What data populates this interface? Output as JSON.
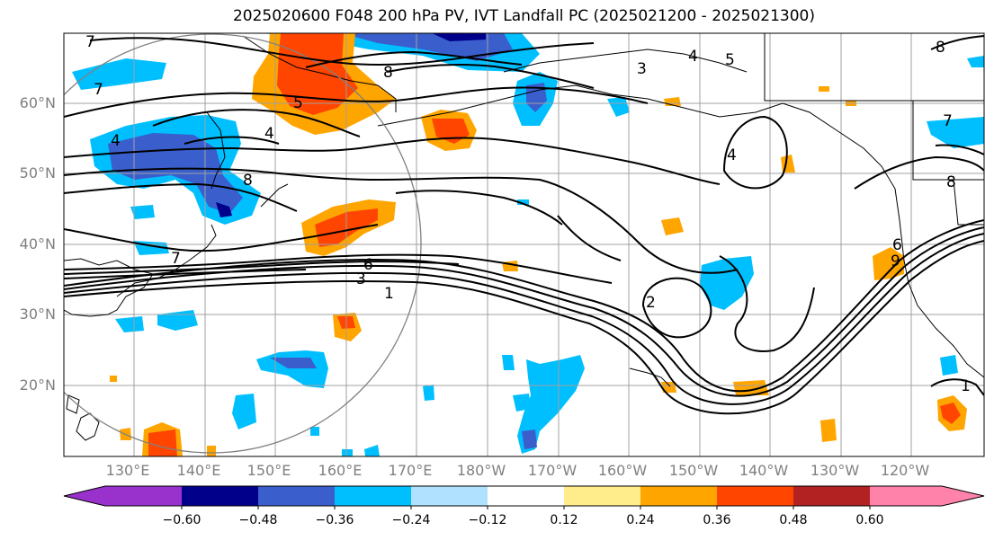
{
  "title": "2025020600 F048 200 hPa PV, IVT Landfall PC (2025021200 - 2025021300)",
  "lat_labels": [
    "60°N",
    "50°N",
    "40°N",
    "30°N",
    "20°N"
  ],
  "lon_labels": [
    "130°E",
    "140°E",
    "150°E",
    "160°E",
    "170°E",
    "180°W",
    "170°W",
    "160°W",
    "150°W",
    "140°W",
    "130°W",
    "120°W"
  ],
  "contour_labels": [
    "7",
    "7",
    "5",
    "4",
    "8",
    "8",
    "3",
    "4",
    "5",
    "8",
    "7",
    "4",
    "8",
    "7",
    "6",
    "3",
    "1",
    "2",
    "6",
    "9",
    "4",
    "1"
  ],
  "colorbar": {
    "colors": [
      "#9932cc",
      "#00008b",
      "#3a5fcd",
      "#00bfff",
      "#b0e2ff",
      "#ffffff",
      "#ffec8b",
      "#ffa500",
      "#ff4500",
      "#b22222",
      "#ff82ab"
    ],
    "tick_labels": [
      "−0.60",
      "−0.48",
      "−0.36",
      "−0.24",
      "−0.12",
      "0.12",
      "0.24",
      "0.36",
      "0.48",
      "0.60"
    ]
  },
  "colors": {
    "grid": "#a0a0a0",
    "coast": "#000000",
    "contour": "#000000",
    "circle": "#808080"
  }
}
